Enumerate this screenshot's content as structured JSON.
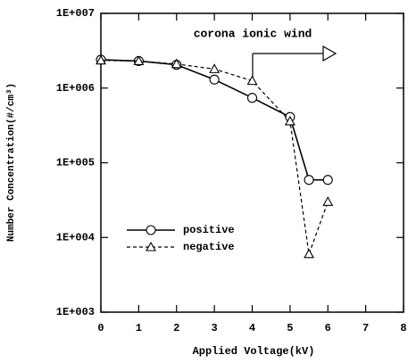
{
  "chart_data": {
    "type": "line",
    "xlabel": "Applied Voltage(kV)",
    "ylabel": "Number Concentration(#/cm³)",
    "annotation": "corona ionic wind",
    "x": [
      0,
      1,
      2,
      3,
      4,
      5,
      5.5,
      6
    ],
    "series": [
      {
        "name": "positive",
        "color": "#000000",
        "linestyle": "solid",
        "marker": "circle",
        "values": [
          2400000,
          2300000,
          2050000,
          1300000,
          740000,
          410000,
          59000,
          59000
        ]
      },
      {
        "name": "negative",
        "color": "#000000",
        "linestyle": "dashed",
        "marker": "triangle",
        "values": [
          2350000,
          2300000,
          2100000,
          1800000,
          1250000,
          360000,
          6000,
          30000
        ]
      }
    ],
    "xlim": [
      0,
      8
    ],
    "xticks": [
      0,
      1,
      2,
      3,
      4,
      5,
      6,
      7,
      8
    ],
    "ylim": [
      1000,
      10000000
    ],
    "yscale": "log",
    "yticks": [
      {
        "value": 1000,
        "label": "1E+003"
      },
      {
        "value": 10000,
        "label": "1E+004"
      },
      {
        "value": 100000,
        "label": "1E+005"
      },
      {
        "value": 1000000,
        "label": "1E+006"
      },
      {
        "value": 10000000,
        "label": "1E+007"
      }
    ],
    "legend": "lower left",
    "grid": false
  }
}
